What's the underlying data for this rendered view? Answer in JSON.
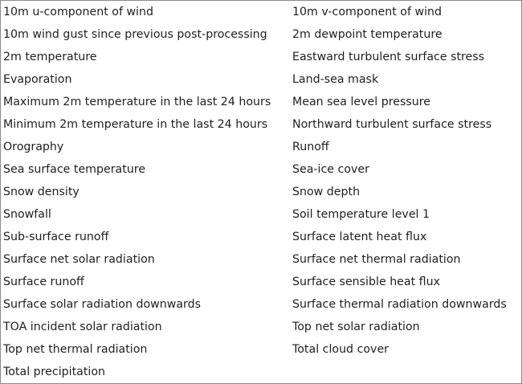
{
  "variables": {
    "left": [
      "10m u-component of wind",
      "10m wind gust since previous post-processing",
      "2m temperature",
      "Evaporation",
      "Maximum 2m temperature in the last 24 hours",
      "Minimum 2m temperature in the last 24 hours",
      "Orography",
      "Sea surface temperature",
      "Snow density",
      "Snowfall",
      "Sub-surface runoff",
      "Surface net solar radiation",
      "Surface runoff",
      "Surface solar radiation downwards",
      "TOA incident solar radiation",
      "Top net thermal radiation",
      "Total precipitation"
    ],
    "right": [
      "10m v-component of wind",
      "2m dewpoint temperature",
      "Eastward turbulent surface stress",
      "Land-sea mask",
      "Mean sea level pressure",
      "Northward turbulent surface stress",
      "Runoff",
      "Sea-ice cover",
      "Snow depth",
      "Soil temperature level 1",
      "Surface latent heat flux",
      "Surface net thermal radiation",
      "Surface sensible heat flux",
      "Surface thermal radiation downwards",
      "Top net solar radiation",
      "Total cloud cover"
    ]
  }
}
